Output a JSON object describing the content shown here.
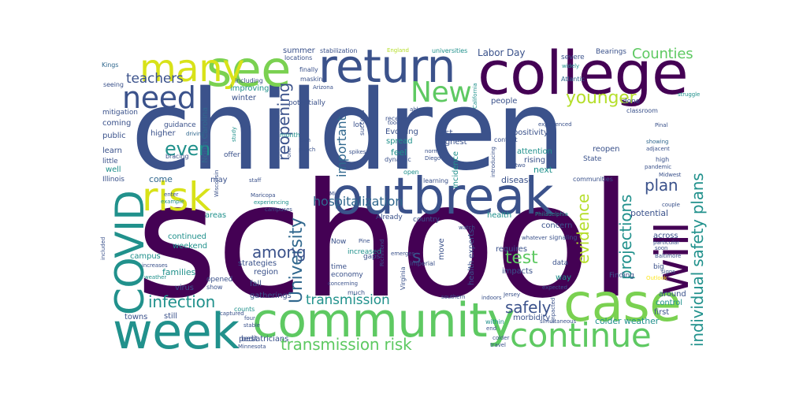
{
  "palette": {
    "dark_purple": "#440154",
    "indigo": "#3b528b",
    "blue": "#31688e",
    "teal": "#21918c",
    "green": "#5ec962",
    "lime": "#b5de2b",
    "yellow": "#fde725",
    "background": "#ffffff"
  },
  "words": [
    {
      "text": "school",
      "color": "#440154"
    },
    {
      "text": "children",
      "color": "#3b528b"
    },
    {
      "text": "college",
      "color": "#440154"
    },
    {
      "text": "outbreak",
      "color": "#3b528b"
    },
    {
      "text": "community",
      "color": "#5ec962"
    },
    {
      "text": "return",
      "color": "#3b528b"
    },
    {
      "text": "case",
      "color": "#7ad151"
    },
    {
      "text": "see",
      "color": "#7ad151"
    },
    {
      "text": "many",
      "color": "#d8e219"
    },
    {
      "text": "week",
      "color": "#21918c"
    },
    {
      "text": "continue",
      "color": "#5ec962"
    },
    {
      "text": "COVID",
      "color": "#21918c"
    },
    {
      "text": "will",
      "color": "#440154"
    },
    {
      "text": "need",
      "color": "#3b528b"
    },
    {
      "text": "risk",
      "color": "#d8e219"
    },
    {
      "text": "New",
      "color": "#5ec962"
    },
    {
      "text": "University",
      "color": "#31688e"
    },
    {
      "text": "individual safety plans",
      "color": "#21918c"
    },
    {
      "text": "transmission risk",
      "color": "#5ec962"
    },
    {
      "text": "younger",
      "color": "#b5de2b"
    },
    {
      "text": "even",
      "color": "#21918c"
    },
    {
      "text": "Counties",
      "color": "#5ec962"
    },
    {
      "text": "infection",
      "color": "#21918c"
    },
    {
      "text": "plan",
      "color": "#3b528b"
    },
    {
      "text": "test",
      "color": "#5ec962"
    },
    {
      "text": "projections",
      "color": "#21918c"
    },
    {
      "text": "safely",
      "color": "#3b528b"
    },
    {
      "text": "reopening",
      "color": "#3b528b"
    },
    {
      "text": "evidence",
      "color": "#b5de2b"
    },
    {
      "text": "teachers",
      "color": "#3b528b"
    },
    {
      "text": "transmission",
      "color": "#21918c"
    },
    {
      "text": "among",
      "color": "#3b528b"
    },
    {
      "text": "important",
      "color": "#31688e"
    },
    {
      "text": "hospitalization",
      "color": "#31688e"
    },
    {
      "text": "s",
      "color": "#3b528b"
    },
    {
      "text": "Labor Day",
      "color": "#3b528b"
    },
    {
      "text": "summer",
      "color": "#3b528b"
    },
    {
      "text": "stabilization",
      "color": "#3b528b"
    },
    {
      "text": "universities",
      "color": "#21918c"
    },
    {
      "text": "England",
      "color": "#b5de2b"
    },
    {
      "text": "Bearings",
      "color": "#3b528b"
    },
    {
      "text": "severe",
      "color": "#3b528b"
    },
    {
      "text": "widely",
      "color": "#21918c"
    },
    {
      "text": "Atlantic",
      "color": "#31688e"
    },
    {
      "text": "struggle",
      "color": "#21918c"
    },
    {
      "text": "Kings",
      "color": "#31688e"
    },
    {
      "text": "seeing",
      "color": "#3b528b"
    },
    {
      "text": "mitigation",
      "color": "#3b528b"
    },
    {
      "text": "coming",
      "color": "#3b528b"
    },
    {
      "text": "higher",
      "color": "#3b528b"
    },
    {
      "text": "public",
      "color": "#3b528b"
    },
    {
      "text": "learn",
      "color": "#3b528b"
    },
    {
      "text": "little",
      "color": "#3b528b"
    },
    {
      "text": "well",
      "color": "#21918c"
    },
    {
      "text": "Illinois",
      "color": "#3b528b"
    },
    {
      "text": "locations",
      "color": "#3b528b"
    },
    {
      "text": "finally",
      "color": "#3b528b"
    },
    {
      "text": "including",
      "color": "#3b528b"
    },
    {
      "text": "masking",
      "color": "#3b528b"
    },
    {
      "text": "improving",
      "color": "#21918c"
    },
    {
      "text": "winter",
      "color": "#3b528b"
    },
    {
      "text": "potentially",
      "color": "#3b528b"
    },
    {
      "text": "North Carolina",
      "color": "#31688e"
    },
    {
      "text": "guidance",
      "color": "#3b528b"
    },
    {
      "text": "driving",
      "color": "#31688e"
    },
    {
      "text": "bracing",
      "color": "#3b528b"
    },
    {
      "text": "come",
      "color": "#31688e"
    },
    {
      "text": "may",
      "color": "#3b528b"
    },
    {
      "text": "staff",
      "color": "#3b528b"
    },
    {
      "text": "region",
      "color": "#3b528b"
    },
    {
      "text": "fall",
      "color": "#3b528b"
    },
    {
      "text": "gatherings",
      "color": "#3b528b"
    },
    {
      "text": "pediatricians",
      "color": "#3b528b"
    },
    {
      "text": "areas",
      "color": "#21918c"
    },
    {
      "text": "continued",
      "color": "#21918c"
    },
    {
      "text": "weekend",
      "color": "#21918c"
    },
    {
      "text": "strategies",
      "color": "#3b528b"
    },
    {
      "text": "families",
      "color": "#21918c"
    },
    {
      "text": "virus",
      "color": "#3b528b"
    },
    {
      "text": "opened",
      "color": "#3b528b"
    },
    {
      "text": "show",
      "color": "#3b528b"
    },
    {
      "text": "towns",
      "color": "#3b528b"
    },
    {
      "text": "still",
      "color": "#3b528b"
    },
    {
      "text": "best",
      "color": "#3b528b"
    },
    {
      "text": "Minnesota",
      "color": "#3b528b"
    },
    {
      "text": "counts",
      "color": "#21918c"
    },
    {
      "text": "received",
      "color": "#3b528b"
    },
    {
      "text": "Evolving",
      "color": "#3b528b"
    },
    {
      "text": "spread",
      "color": "#21918c"
    },
    {
      "text": "feel",
      "color": "#21918c"
    },
    {
      "text": "lot",
      "color": "#3b528b"
    },
    {
      "text": "last",
      "color": "#3b528b"
    },
    {
      "text": "highest",
      "color": "#3b528b"
    },
    {
      "text": "context",
      "color": "#3b528b"
    },
    {
      "text": "positivity",
      "color": "#3b528b"
    },
    {
      "text": "rising",
      "color": "#3b528b"
    },
    {
      "text": "attention",
      "color": "#21918c"
    },
    {
      "text": "people",
      "color": "#3b528b"
    },
    {
      "text": "experienced",
      "color": "#3b528b"
    },
    {
      "text": "showing",
      "color": "#31688e"
    },
    {
      "text": "adjacent",
      "color": "#3b528b"
    },
    {
      "text": "reopen",
      "color": "#3b528b"
    },
    {
      "text": "State",
      "color": "#3b528b"
    },
    {
      "text": "next",
      "color": "#21918c"
    },
    {
      "text": "disease",
      "color": "#3b528b"
    },
    {
      "text": "communities",
      "color": "#3b528b"
    },
    {
      "text": "learning",
      "color": "#3b528b"
    },
    {
      "text": "incidence",
      "color": "#21918c"
    },
    {
      "text": "health",
      "color": "#21918c"
    },
    {
      "text": "health experts",
      "color": "#3b528b"
    },
    {
      "text": "potential",
      "color": "#3b528b"
    },
    {
      "text": "country",
      "color": "#3b528b"
    },
    {
      "text": "across",
      "color": "#3b528b"
    },
    {
      "text": "requires",
      "color": "#3b528b"
    },
    {
      "text": "impacts",
      "color": "#3b528b"
    },
    {
      "text": "big",
      "color": "#3b528b"
    },
    {
      "text": "concern",
      "color": "#3b528b"
    },
    {
      "text": "Now",
      "color": "#3b528b"
    },
    {
      "text": "increased",
      "color": "#21918c"
    },
    {
      "text": "gaps",
      "color": "#3b528b"
    },
    {
      "text": "time",
      "color": "#3b528b"
    },
    {
      "text": "economy",
      "color": "#3b528b"
    },
    {
      "text": "much",
      "color": "#3b528b"
    },
    {
      "text": "morbidity",
      "color": "#3b528b"
    },
    {
      "text": "colder weather",
      "color": "#21918c"
    },
    {
      "text": "first",
      "color": "#3b528b"
    },
    {
      "text": "control",
      "color": "#21918c"
    },
    {
      "text": "around",
      "color": "#3b528b"
    },
    {
      "text": "Finding",
      "color": "#3b528b"
    },
    {
      "text": "way",
      "color": "#21918c"
    },
    {
      "text": "done",
      "color": "#3b528b"
    },
    {
      "text": "classroom",
      "color": "#3b528b"
    },
    {
      "text": "two",
      "color": "#3b528b"
    },
    {
      "text": "Already",
      "color": "#3b528b"
    },
    {
      "text": "campus",
      "color": "#21918c"
    },
    {
      "text": "Wisconsin",
      "color": "#3b528b"
    },
    {
      "text": "example",
      "color": "#21918c"
    },
    {
      "text": "increases",
      "color": "#3b528b"
    },
    {
      "text": "weather",
      "color": "#21918c"
    },
    {
      "text": "Philadelphia",
      "color": "#21918c"
    },
    {
      "text": "signaling",
      "color": "#3b528b"
    },
    {
      "text": "whatever",
      "color": "#3b528b"
    },
    {
      "text": "soon",
      "color": "#3b528b"
    },
    {
      "text": "Baltimore",
      "color": "#3b528b"
    },
    {
      "text": "Outlook",
      "color": "#fde725"
    },
    {
      "text": "Richmond",
      "color": "#3b528b"
    },
    {
      "text": "Virginia",
      "color": "#3b528b"
    },
    {
      "text": "imperial",
      "color": "#3b528b"
    },
    {
      "text": "within",
      "color": "#21918c"
    },
    {
      "text": "end",
      "color": "#3b528b"
    },
    {
      "text": "travel",
      "color": "#3b528b"
    },
    {
      "text": "simultaneous",
      "color": "#3b528b"
    },
    {
      "text": "expected",
      "color": "#3b528b"
    },
    {
      "text": "Maricopa",
      "color": "#3b528b"
    },
    {
      "text": "experiencing",
      "color": "#21918c"
    },
    {
      "text": "campuses",
      "color": "#3b528b"
    },
    {
      "text": "Diego",
      "color": "#3b528b"
    },
    {
      "text": "San",
      "color": "#3b528b"
    },
    {
      "text": "normal",
      "color": "#3b528b"
    },
    {
      "text": "dynamic",
      "color": "#3b528b"
    },
    {
      "text": "open",
      "color": "#21918c"
    },
    {
      "text": "spikes",
      "color": "#3b528b"
    },
    {
      "text": "punch",
      "color": "#3b528b"
    },
    {
      "text": "succeed",
      "color": "#3b528b"
    },
    {
      "text": "month",
      "color": "#21918c"
    },
    {
      "text": "study",
      "color": "#21918c"
    },
    {
      "text": "offer",
      "color": "#3b528b"
    },
    {
      "text": "Arizona",
      "color": "#3b528b"
    },
    {
      "text": "California",
      "color": "#21918c"
    },
    {
      "text": "able",
      "color": "#3b528b"
    },
    {
      "text": "high",
      "color": "#3b528b"
    },
    {
      "text": "Pinal",
      "color": "#3b528b"
    },
    {
      "text": "pandemic",
      "color": "#3b528b"
    },
    {
      "text": "Midwest",
      "color": "#3b528b"
    },
    {
      "text": "couple",
      "color": "#3b528b"
    },
    {
      "text": "particular",
      "color": "#3b528b"
    },
    {
      "text": "four",
      "color": "#3b528b"
    },
    {
      "text": "stable",
      "color": "#3b528b"
    },
    {
      "text": "captured",
      "color": "#3b528b"
    },
    {
      "text": "colder",
      "color": "#3b528b"
    },
    {
      "text": "southern",
      "color": "#3b528b"
    },
    {
      "text": "indoors",
      "color": "#3b528b"
    },
    {
      "text": "Jersey",
      "color": "#3b528b"
    },
    {
      "text": "watch",
      "color": "#3b528b"
    },
    {
      "text": "emerges",
      "color": "#3b528b"
    },
    {
      "text": "concerning",
      "color": "#3b528b"
    },
    {
      "text": "Pine",
      "color": "#3b528b"
    },
    {
      "text": "move",
      "color": "#3b528b"
    },
    {
      "text": "data",
      "color": "#3b528b"
    },
    {
      "text": "impacted",
      "color": "#3b528b"
    },
    {
      "text": "introducing",
      "color": "#3b528b"
    },
    {
      "text": "included",
      "color": "#3b528b"
    },
    {
      "text": "enter",
      "color": "#3b528b"
    },
    {
      "text": "signs",
      "color": "#3b528b"
    },
    {
      "text": "one",
      "color": "#3b528b"
    },
    {
      "text": "Mid",
      "color": "#3b528b"
    },
    {
      "text": "toon",
      "color": "#3b528b"
    }
  ]
}
